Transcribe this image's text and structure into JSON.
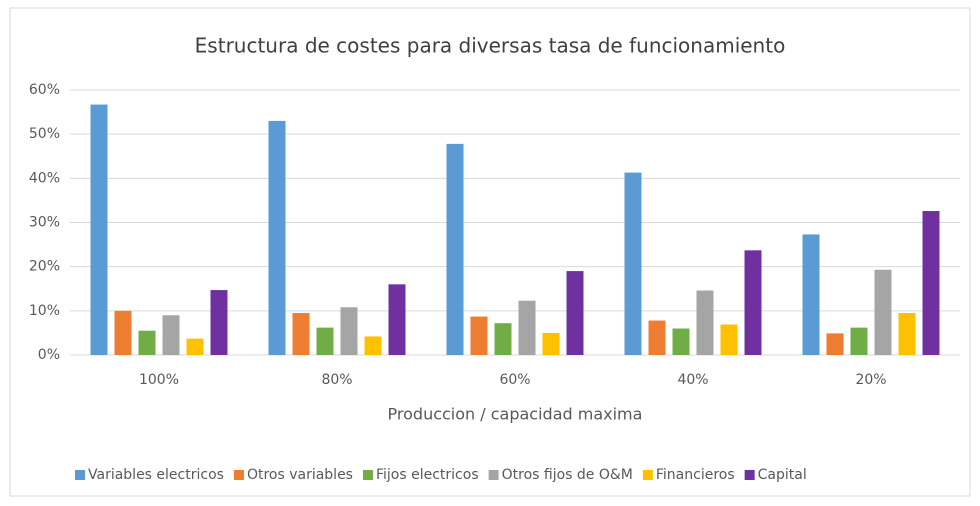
{
  "chart_data": {
    "type": "bar",
    "title": "Estructura de costes para diversas tasa de funcionamiento",
    "x_label": "Produccion / capacidad maxima",
    "categories": [
      "100%",
      "80%",
      "60%",
      "40%",
      "20%"
    ],
    "series": [
      {
        "name": "Variables electricos",
        "color": "#5b9bd5",
        "values": [
          56.7,
          53,
          47.8,
          41.3,
          27.3
        ]
      },
      {
        "name": "Otros variables",
        "color": "#ed7d31",
        "values": [
          10,
          9.5,
          8.7,
          7.8,
          4.9
        ]
      },
      {
        "name": "Fijos electricos",
        "color": "#70ad47",
        "values": [
          5.5,
          6.2,
          7.2,
          6,
          6.2
        ]
      },
      {
        "name": "Otros fijos de O&M",
        "color": "#a5a5a5",
        "values": [
          9,
          10.8,
          12.3,
          14.6,
          19.3
        ]
      },
      {
        "name": "Financieros",
        "color": "#ffc000",
        "values": [
          3.7,
          4.2,
          5,
          6.9,
          9.5
        ]
      },
      {
        "name": "Capital",
        "color": "#7030a0",
        "values": [
          14.7,
          16,
          19,
          23.7,
          32.6
        ]
      }
    ],
    "ylim": [
      0,
      60
    ],
    "yticks": [
      {
        "value": 0,
        "label": "0%"
      },
      {
        "value": 10,
        "label": "10%"
      },
      {
        "value": 20,
        "label": "20%"
      },
      {
        "value": 30,
        "label": "30%"
      },
      {
        "value": 40,
        "label": "40%"
      },
      {
        "value": 50,
        "label": "50%"
      },
      {
        "value": 60,
        "label": "60%"
      }
    ],
    "grid": true,
    "legend": "bottom"
  }
}
